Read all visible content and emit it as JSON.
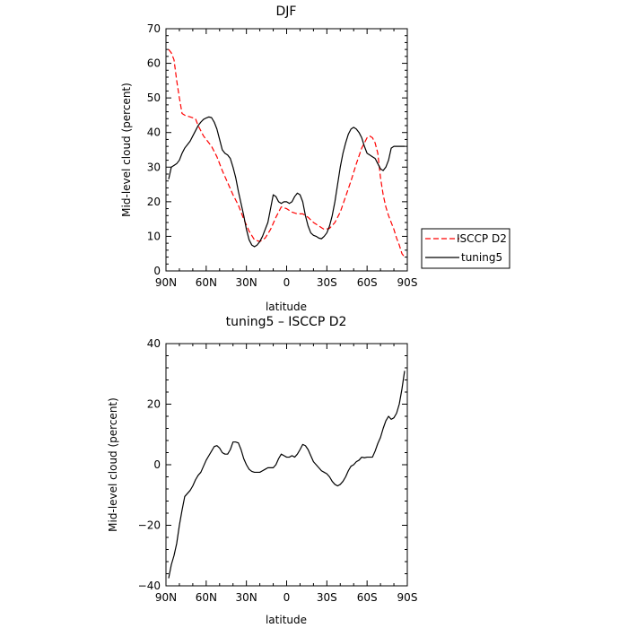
{
  "chart_data": [
    {
      "type": "line",
      "title": "DJF",
      "xlabel": "latitude",
      "ylabel": "Mid-level cloud (percent)",
      "xlim": [
        90,
        -90
      ],
      "ylim": [
        0,
        70
      ],
      "xticks": [
        90,
        60,
        30,
        0,
        -30,
        -60,
        -90
      ],
      "xtick_labels": [
        "90N",
        "60N",
        "30N",
        "0",
        "30S",
        "60S",
        "90S"
      ],
      "yticks": [
        0,
        10,
        20,
        30,
        40,
        50,
        60,
        70
      ],
      "ytick_labels": [
        "0",
        "10",
        "20",
        "30",
        "40",
        "50",
        "60",
        "70"
      ],
      "grid": false,
      "legend": "outside-right",
      "series": [
        {
          "name": "ISCCP D2",
          "color": "#ff0000",
          "style": "dashed",
          "x": [
            88,
            86,
            84,
            82,
            80,
            78,
            76,
            72,
            68,
            66,
            64,
            62,
            60,
            56,
            52,
            48,
            44,
            40,
            36,
            32,
            28,
            24,
            20,
            16,
            12,
            8,
            4,
            0,
            -4,
            -8,
            -12,
            -16,
            -20,
            -24,
            -28,
            -32,
            -36,
            -40,
            -44,
            -48,
            -52,
            -56,
            -60,
            -62,
            -64,
            -66,
            -68,
            -70,
            -72,
            -74,
            -76,
            -78,
            -80,
            -82,
            -84,
            -86,
            -88
          ],
          "y": [
            64,
            63,
            61,
            55,
            50,
            45.5,
            45,
            44.5,
            44,
            42,
            40.5,
            39,
            38,
            36,
            33,
            29,
            25.5,
            22,
            19,
            15,
            11.5,
            9,
            8.5,
            9.5,
            12,
            15.5,
            18.5,
            18,
            17,
            16.5,
            16.5,
            15.5,
            14,
            13,
            12,
            12.3,
            14,
            17,
            21.5,
            26,
            31,
            35.5,
            38.5,
            39,
            38.5,
            37,
            34,
            27,
            22,
            18.5,
            16,
            14,
            12,
            9.5,
            7.5,
            5,
            4
          ]
        },
        {
          "name": "tuning5",
          "color": "#000000",
          "style": "solid",
          "x": [
            88,
            86,
            84,
            82,
            80,
            78,
            76,
            74,
            72,
            70,
            68,
            66,
            64,
            62,
            60,
            58,
            56,
            54,
            52,
            50,
            48,
            46,
            44,
            42,
            40,
            38,
            36,
            34,
            32,
            30,
            28,
            26,
            24,
            22,
            20,
            18,
            16,
            14,
            12,
            10,
            8,
            6,
            4,
            2,
            0,
            -2,
            -4,
            -6,
            -8,
            -10,
            -12,
            -14,
            -16,
            -18,
            -20,
            -22,
            -24,
            -26,
            -28,
            -30,
            -32,
            -34,
            -36,
            -38,
            -40,
            -42,
            -44,
            -46,
            -48,
            -50,
            -52,
            -54,
            -56,
            -58,
            -60,
            -62,
            -64,
            -66,
            -68,
            -70,
            -72,
            -74,
            -76,
            -78,
            -80,
            -82,
            -84,
            -86,
            -88
          ],
          "y": [
            26.5,
            30,
            30.5,
            31,
            32,
            34,
            35.5,
            36.5,
            37.5,
            39,
            40.5,
            42,
            43,
            43.8,
            44.2,
            44.5,
            44.3,
            43,
            41,
            38,
            35,
            34,
            33.5,
            32.5,
            30,
            27,
            23,
            19.5,
            16,
            12,
            9,
            7.5,
            7,
            7.5,
            8.5,
            10,
            12,
            14,
            18,
            22,
            21.5,
            20,
            19.5,
            20,
            20,
            19.5,
            20,
            21.5,
            22.5,
            22,
            20,
            16,
            13,
            11,
            10.3,
            10,
            9.5,
            9.3,
            10,
            11,
            13,
            16,
            20,
            25,
            30,
            34,
            37,
            39.5,
            41,
            41.5,
            41,
            40,
            38.5,
            36,
            34,
            33.5,
            33,
            32.5,
            31,
            29.5,
            29,
            30,
            32,
            35.5,
            36,
            36,
            36,
            36,
            36
          ]
        }
      ]
    },
    {
      "type": "line",
      "title": "tuning5 – ISCCP D2",
      "xlabel": "latitude",
      "ylabel": "Mid-level cloud (percent)",
      "xlim": [
        90,
        -90
      ],
      "ylim": [
        -40,
        40
      ],
      "xticks": [
        90,
        60,
        30,
        0,
        -30,
        -60,
        -90
      ],
      "xtick_labels": [
        "90N",
        "60N",
        "30N",
        "0",
        "30S",
        "60S",
        "90S"
      ],
      "yticks": [
        -40,
        -20,
        0,
        20,
        40
      ],
      "ytick_labels": [
        "−40",
        "−20",
        "0",
        "20",
        "40"
      ],
      "grid": false,
      "series": [
        {
          "color": "#000000",
          "style": "solid",
          "x": [
            88,
            86,
            84,
            82,
            80,
            78,
            76,
            74,
            72,
            70,
            68,
            66,
            64,
            62,
            60,
            58,
            56,
            54,
            52,
            50,
            48,
            46,
            44,
            42,
            40,
            38,
            36,
            34,
            32,
            30,
            28,
            26,
            24,
            22,
            20,
            18,
            16,
            14,
            12,
            10,
            8,
            6,
            4,
            2,
            0,
            -2,
            -4,
            -6,
            -8,
            -10,
            -12,
            -14,
            -16,
            -18,
            -20,
            -22,
            -24,
            -26,
            -28,
            -30,
            -32,
            -34,
            -36,
            -38,
            -40,
            -42,
            -44,
            -46,
            -48,
            -50,
            -52,
            -54,
            -56,
            -58,
            -60,
            -62,
            -64,
            -66,
            -68,
            -70,
            -72,
            -74,
            -76,
            -78,
            -80,
            -82,
            -84,
            -86,
            -88
          ],
          "y": [
            -37.5,
            -33,
            -30,
            -26,
            -20,
            -15,
            -10.5,
            -9.5,
            -8.5,
            -7,
            -5,
            -3.5,
            -2.5,
            -0.5,
            1.5,
            3,
            4.5,
            6,
            6.3,
            5.5,
            4,
            3.5,
            3.5,
            5,
            7.5,
            7.5,
            7.2,
            5,
            2,
            0,
            -1.5,
            -2.2,
            -2.5,
            -2.5,
            -2.5,
            -2,
            -1.5,
            -1,
            -1,
            -1,
            0,
            2,
            3.5,
            3,
            2.5,
            2.5,
            3,
            2.5,
            3.5,
            5,
            6.7,
            6.3,
            5,
            3,
            1,
            0,
            -1,
            -2,
            -2.5,
            -3,
            -4,
            -5.5,
            -6.5,
            -7,
            -6.5,
            -5.5,
            -4,
            -2,
            -0.5,
            0,
            1,
            1.5,
            2.5,
            2.3,
            2.5,
            2.5,
            2.5,
            4.5,
            7,
            9,
            12,
            14.5,
            16,
            15,
            15.5,
            17,
            20,
            25,
            31
          ]
        }
      ]
    }
  ]
}
